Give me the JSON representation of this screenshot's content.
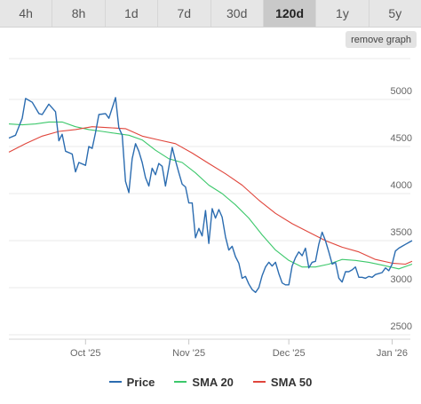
{
  "tabs": [
    {
      "label": "4h",
      "active": false
    },
    {
      "label": "8h",
      "active": false
    },
    {
      "label": "1d",
      "active": false
    },
    {
      "label": "7d",
      "active": false
    },
    {
      "label": "30d",
      "active": false
    },
    {
      "label": "120d",
      "active": true
    },
    {
      "label": "1y",
      "active": false
    },
    {
      "label": "5y",
      "active": false
    }
  ],
  "remove_graph_label": "remove graph",
  "colors": {
    "price": "#2b6cb0",
    "sma20": "#3cc86b",
    "sma50": "#e0463c",
    "grid": "#e8e8e8"
  },
  "chart_data": {
    "type": "line",
    "x_start": "2025-09-08",
    "x_end": "2026-01-07",
    "xtick_labels": [
      {
        "label": "Oct '25",
        "date": "2025-10-01"
      },
      {
        "label": "Nov '25",
        "date": "2025-11-01"
      },
      {
        "label": "Dec '25",
        "date": "2025-12-01"
      },
      {
        "label": "Jan '26",
        "date": "2026-01-01"
      }
    ],
    "yticks": [
      2500,
      3000,
      3500,
      4000,
      4500,
      5000
    ],
    "ylim": [
      2500,
      5000
    ],
    "grid": true,
    "legend_position": "bottom",
    "series": [
      {
        "name": "Price",
        "points": [
          [
            "2025-09-08",
            4590
          ],
          [
            "2025-09-10",
            4620
          ],
          [
            "2025-09-12",
            4800
          ],
          [
            "2025-09-13",
            5010
          ],
          [
            "2025-09-15",
            4970
          ],
          [
            "2025-09-17",
            4850
          ],
          [
            "2025-09-18",
            4840
          ],
          [
            "2025-09-20",
            4950
          ],
          [
            "2025-09-22",
            4870
          ],
          [
            "2025-09-23",
            4560
          ],
          [
            "2025-09-24",
            4630
          ],
          [
            "2025-09-25",
            4450
          ],
          [
            "2025-09-27",
            4420
          ],
          [
            "2025-09-28",
            4230
          ],
          [
            "2025-09-29",
            4330
          ],
          [
            "2025-10-01",
            4300
          ],
          [
            "2025-10-02",
            4500
          ],
          [
            "2025-10-03",
            4480
          ],
          [
            "2025-10-04",
            4650
          ],
          [
            "2025-10-05",
            4840
          ],
          [
            "2025-10-07",
            4850
          ],
          [
            "2025-10-08",
            4800
          ],
          [
            "2025-10-10",
            5020
          ],
          [
            "2025-10-11",
            4700
          ],
          [
            "2025-10-12",
            4620
          ],
          [
            "2025-10-13",
            4130
          ],
          [
            "2025-10-14",
            4010
          ],
          [
            "2025-10-15",
            4370
          ],
          [
            "2025-10-16",
            4530
          ],
          [
            "2025-10-17",
            4450
          ],
          [
            "2025-10-18",
            4330
          ],
          [
            "2025-10-19",
            4170
          ],
          [
            "2025-10-20",
            4080
          ],
          [
            "2025-10-21",
            4270
          ],
          [
            "2025-10-22",
            4200
          ],
          [
            "2025-10-23",
            4320
          ],
          [
            "2025-10-24",
            4290
          ],
          [
            "2025-10-25",
            4080
          ],
          [
            "2025-10-26",
            4280
          ],
          [
            "2025-10-27",
            4490
          ],
          [
            "2025-10-28",
            4350
          ],
          [
            "2025-10-29",
            4220
          ],
          [
            "2025-10-30",
            4100
          ],
          [
            "2025-10-31",
            4070
          ],
          [
            "2025-11-01",
            3900
          ],
          [
            "2025-11-02",
            3900
          ],
          [
            "2025-11-03",
            3530
          ],
          [
            "2025-11-04",
            3630
          ],
          [
            "2025-11-05",
            3550
          ],
          [
            "2025-11-06",
            3820
          ],
          [
            "2025-11-07",
            3470
          ],
          [
            "2025-11-08",
            3840
          ],
          [
            "2025-11-09",
            3740
          ],
          [
            "2025-11-10",
            3830
          ],
          [
            "2025-11-11",
            3750
          ],
          [
            "2025-11-12",
            3540
          ],
          [
            "2025-11-13",
            3400
          ],
          [
            "2025-11-14",
            3440
          ],
          [
            "2025-11-15",
            3330
          ],
          [
            "2025-11-16",
            3260
          ],
          [
            "2025-11-17",
            3100
          ],
          [
            "2025-11-18",
            3120
          ],
          [
            "2025-11-19",
            3040
          ],
          [
            "2025-11-20",
            2980
          ],
          [
            "2025-11-21",
            2950
          ],
          [
            "2025-11-22",
            3000
          ],
          [
            "2025-11-23",
            3130
          ],
          [
            "2025-11-24",
            3220
          ],
          [
            "2025-11-25",
            3270
          ],
          [
            "2025-11-26",
            3230
          ],
          [
            "2025-11-27",
            3270
          ],
          [
            "2025-11-28",
            3150
          ],
          [
            "2025-11-29",
            3050
          ],
          [
            "2025-11-30",
            3030
          ],
          [
            "2025-12-01",
            3030
          ],
          [
            "2025-12-02",
            3230
          ],
          [
            "2025-12-03",
            3320
          ],
          [
            "2025-12-04",
            3380
          ],
          [
            "2025-12-05",
            3340
          ],
          [
            "2025-12-06",
            3420
          ],
          [
            "2025-12-07",
            3210
          ],
          [
            "2025-12-08",
            3270
          ],
          [
            "2025-12-09",
            3280
          ],
          [
            "2025-12-10",
            3460
          ],
          [
            "2025-12-11",
            3590
          ],
          [
            "2025-12-12",
            3500
          ],
          [
            "2025-12-13",
            3380
          ],
          [
            "2025-12-14",
            3250
          ],
          [
            "2025-12-15",
            3270
          ],
          [
            "2025-12-16",
            3100
          ],
          [
            "2025-12-17",
            3060
          ],
          [
            "2025-12-18",
            3170
          ],
          [
            "2025-12-19",
            3170
          ],
          [
            "2025-12-20",
            3190
          ],
          [
            "2025-12-21",
            3220
          ],
          [
            "2025-12-22",
            3110
          ],
          [
            "2025-12-23",
            3110
          ],
          [
            "2025-12-24",
            3100
          ],
          [
            "2025-12-25",
            3120
          ],
          [
            "2025-12-26",
            3110
          ],
          [
            "2025-12-27",
            3140
          ],
          [
            "2025-12-28",
            3150
          ],
          [
            "2025-12-29",
            3160
          ],
          [
            "2025-12-30",
            3210
          ],
          [
            "2025-12-31",
            3180
          ],
          [
            "2026-01-01",
            3250
          ],
          [
            "2026-01-02",
            3390
          ],
          [
            "2026-01-03",
            3420
          ],
          [
            "2026-01-04",
            3440
          ],
          [
            "2026-01-05",
            3460
          ],
          [
            "2026-01-06",
            3480
          ],
          [
            "2026-01-07",
            3500
          ]
        ]
      },
      {
        "name": "SMA 20",
        "points": [
          [
            "2025-09-08",
            4740
          ],
          [
            "2025-09-12",
            4730
          ],
          [
            "2025-09-16",
            4740
          ],
          [
            "2025-09-20",
            4760
          ],
          [
            "2025-09-24",
            4760
          ],
          [
            "2025-09-28",
            4710
          ],
          [
            "2025-10-02",
            4680
          ],
          [
            "2025-10-06",
            4660
          ],
          [
            "2025-10-10",
            4640
          ],
          [
            "2025-10-14",
            4620
          ],
          [
            "2025-10-18",
            4570
          ],
          [
            "2025-10-22",
            4460
          ],
          [
            "2025-10-26",
            4370
          ],
          [
            "2025-10-30",
            4330
          ],
          [
            "2025-11-03",
            4220
          ],
          [
            "2025-11-07",
            4090
          ],
          [
            "2025-11-11",
            4000
          ],
          [
            "2025-11-15",
            3880
          ],
          [
            "2025-11-19",
            3740
          ],
          [
            "2025-11-23",
            3560
          ],
          [
            "2025-11-27",
            3400
          ],
          [
            "2025-12-01",
            3290
          ],
          [
            "2025-12-05",
            3220
          ],
          [
            "2025-12-09",
            3220
          ],
          [
            "2025-12-13",
            3250
          ],
          [
            "2025-12-17",
            3300
          ],
          [
            "2025-12-21",
            3290
          ],
          [
            "2025-12-25",
            3270
          ],
          [
            "2025-12-29",
            3240
          ],
          [
            "2026-01-03",
            3200
          ],
          [
            "2026-01-07",
            3250
          ]
        ]
      },
      {
        "name": "SMA 50",
        "points": [
          [
            "2025-09-08",
            4440
          ],
          [
            "2025-09-13",
            4530
          ],
          [
            "2025-09-18",
            4610
          ],
          [
            "2025-09-23",
            4660
          ],
          [
            "2025-09-28",
            4680
          ],
          [
            "2025-10-03",
            4710
          ],
          [
            "2025-10-08",
            4700
          ],
          [
            "2025-10-13",
            4690
          ],
          [
            "2025-10-18",
            4610
          ],
          [
            "2025-10-23",
            4570
          ],
          [
            "2025-10-28",
            4530
          ],
          [
            "2025-11-02",
            4430
          ],
          [
            "2025-11-07",
            4320
          ],
          [
            "2025-11-12",
            4210
          ],
          [
            "2025-11-17",
            4090
          ],
          [
            "2025-11-22",
            3930
          ],
          [
            "2025-11-27",
            3790
          ],
          [
            "2025-12-02",
            3680
          ],
          [
            "2025-12-07",
            3590
          ],
          [
            "2025-12-12",
            3500
          ],
          [
            "2025-12-17",
            3430
          ],
          [
            "2025-12-22",
            3380
          ],
          [
            "2025-12-27",
            3300
          ],
          [
            "2026-01-01",
            3260
          ],
          [
            "2026-01-05",
            3250
          ],
          [
            "2026-01-07",
            3280
          ]
        ]
      }
    ]
  }
}
